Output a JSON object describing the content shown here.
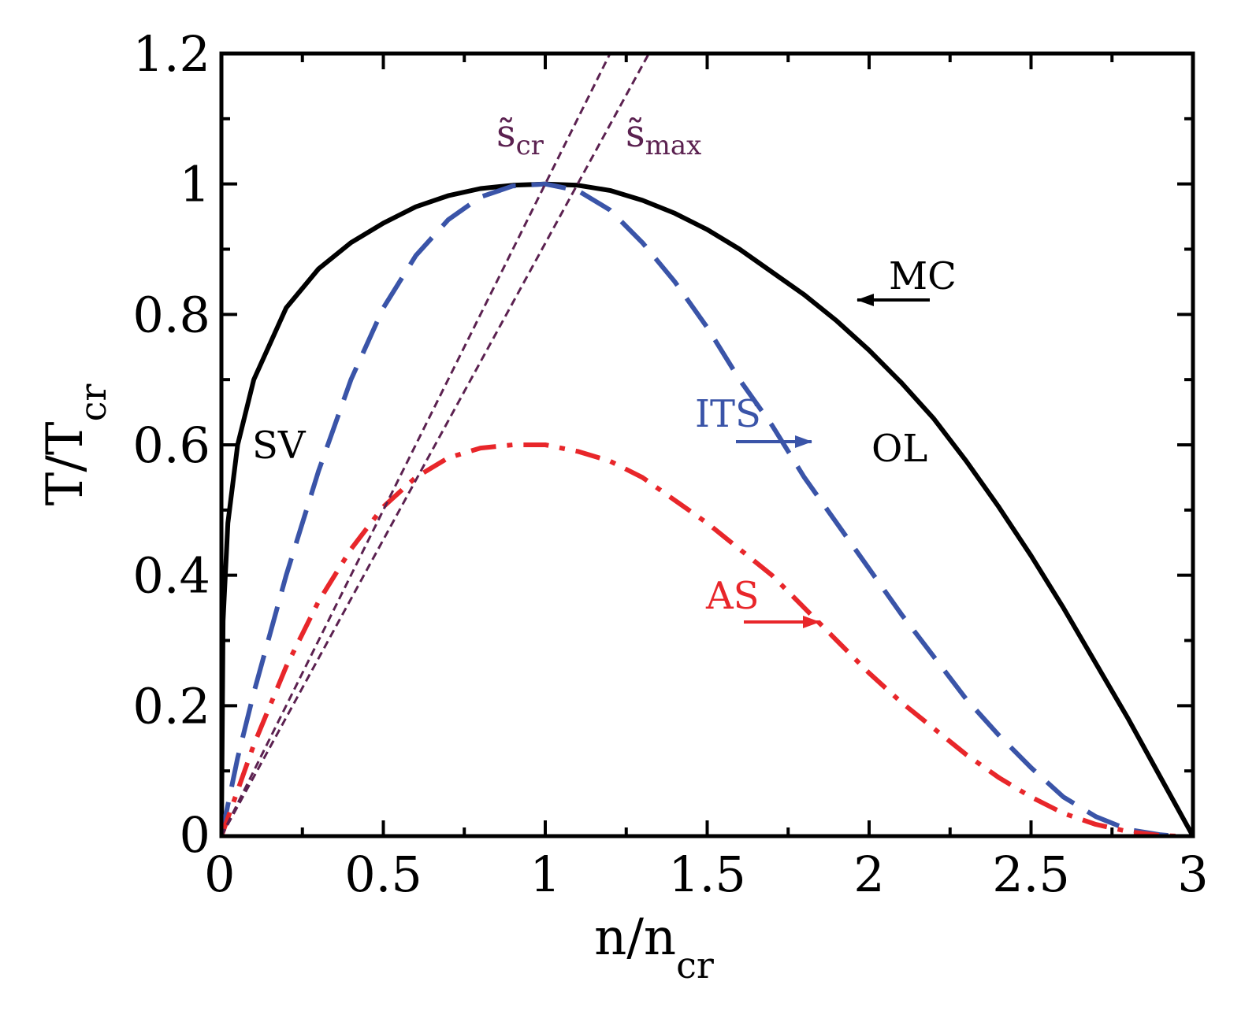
{
  "chart_data": {
    "type": "line",
    "xlabel": {
      "main": "n/n",
      "sub": "cr"
    },
    "ylabel": {
      "main": "T/T",
      "sub": "cr"
    },
    "xlim": [
      0,
      3
    ],
    "ylim": [
      0,
      1.2
    ],
    "xticks": [
      {
        "value": 0,
        "label": "0"
      },
      {
        "value": 0.5,
        "label": "0.5"
      },
      {
        "value": 1,
        "label": "1"
      },
      {
        "value": 1.5,
        "label": "1.5"
      },
      {
        "value": 2,
        "label": "2"
      },
      {
        "value": 2.5,
        "label": "2.5"
      },
      {
        "value": 3,
        "label": "3"
      }
    ],
    "yticks": [
      {
        "value": 0,
        "label": "0"
      },
      {
        "value": 0.2,
        "label": "0.2"
      },
      {
        "value": 0.4,
        "label": "0.4"
      },
      {
        "value": 0.6,
        "label": "0.6"
      },
      {
        "value": 0.8,
        "label": "0.8"
      },
      {
        "value": 1,
        "label": "1"
      },
      {
        "value": 1.2,
        "label": "1.2"
      }
    ],
    "series": [
      {
        "name": "MC",
        "color": "#000000",
        "style": "solid",
        "x": [
          0,
          0.005,
          0.02,
          0.05,
          0.1,
          0.2,
          0.3,
          0.4,
          0.5,
          0.6,
          0.7,
          0.8,
          0.9,
          1.0,
          1.1,
          1.2,
          1.3,
          1.4,
          1.5,
          1.6,
          1.7,
          1.8,
          1.9,
          2.0,
          2.1,
          2.2,
          2.3,
          2.4,
          2.5,
          2.6,
          2.7,
          2.8,
          2.9,
          3.0
        ],
        "y": [
          0,
          0.33,
          0.48,
          0.6,
          0.7,
          0.81,
          0.87,
          0.91,
          0.94,
          0.965,
          0.982,
          0.993,
          0.998,
          1.0,
          0.998,
          0.99,
          0.975,
          0.955,
          0.93,
          0.9,
          0.865,
          0.83,
          0.79,
          0.745,
          0.695,
          0.64,
          0.575,
          0.505,
          0.43,
          0.35,
          0.265,
          0.18,
          0.09,
          0.0
        ]
      },
      {
        "name": "ITS",
        "color": "#3a54a8",
        "style": "dashed",
        "x": [
          0,
          0.05,
          0.1,
          0.2,
          0.3,
          0.4,
          0.5,
          0.6,
          0.7,
          0.8,
          0.9,
          1.0,
          1.1,
          1.2,
          1.3,
          1.4,
          1.5,
          1.6,
          1.7,
          1.8,
          1.9,
          2.0,
          2.1,
          2.2,
          2.3,
          2.4,
          2.5,
          2.6,
          2.7,
          2.8,
          2.9,
          2.95
        ],
        "y": [
          0,
          0.12,
          0.22,
          0.4,
          0.56,
          0.7,
          0.81,
          0.89,
          0.945,
          0.98,
          0.997,
          1.0,
          0.99,
          0.96,
          0.91,
          0.85,
          0.78,
          0.7,
          0.63,
          0.55,
          0.48,
          0.41,
          0.34,
          0.275,
          0.21,
          0.155,
          0.105,
          0.06,
          0.03,
          0.01,
          0.002,
          0.0
        ]
      },
      {
        "name": "AS",
        "color": "#e8262a",
        "style": "dashdot",
        "x": [
          0,
          0.05,
          0.1,
          0.2,
          0.3,
          0.4,
          0.5,
          0.6,
          0.7,
          0.8,
          0.9,
          1.0,
          1.1,
          1.2,
          1.3,
          1.4,
          1.5,
          1.6,
          1.7,
          1.8,
          1.9,
          2.0,
          2.1,
          2.2,
          2.3,
          2.4,
          2.5,
          2.6,
          2.7,
          2.8,
          2.9,
          2.95
        ],
        "y": [
          0,
          0.07,
          0.14,
          0.26,
          0.36,
          0.44,
          0.505,
          0.55,
          0.58,
          0.595,
          0.6,
          0.6,
          0.59,
          0.575,
          0.55,
          0.515,
          0.48,
          0.44,
          0.4,
          0.35,
          0.3,
          0.25,
          0.205,
          0.165,
          0.125,
          0.09,
          0.06,
          0.035,
          0.018,
          0.007,
          0.001,
          0.0
        ]
      },
      {
        "name": "s̃cr",
        "color": "#5b2150",
        "style": "dotted",
        "x": [
          0,
          1.2
        ],
        "y": [
          0,
          1.2
        ]
      },
      {
        "name": "s̃max",
        "color": "#5b2150",
        "style": "dotted",
        "x": [
          0,
          1.32
        ],
        "y": [
          0,
          1.2
        ]
      }
    ],
    "annotations": [
      {
        "text": "MC",
        "color": "#000000",
        "arrow": true
      },
      {
        "text": "ITS",
        "color": "#3a54a8",
        "arrow": true
      },
      {
        "text": "AS",
        "color": "#e8262a",
        "arrow": true
      },
      {
        "text": "SV",
        "color": "#000000"
      },
      {
        "text": "OL",
        "color": "#000000"
      },
      {
        "text": "s̃",
        "sub": "cr",
        "color": "#5b2150"
      },
      {
        "text": "s̃",
        "sub": "max",
        "color": "#5b2150"
      }
    ]
  }
}
